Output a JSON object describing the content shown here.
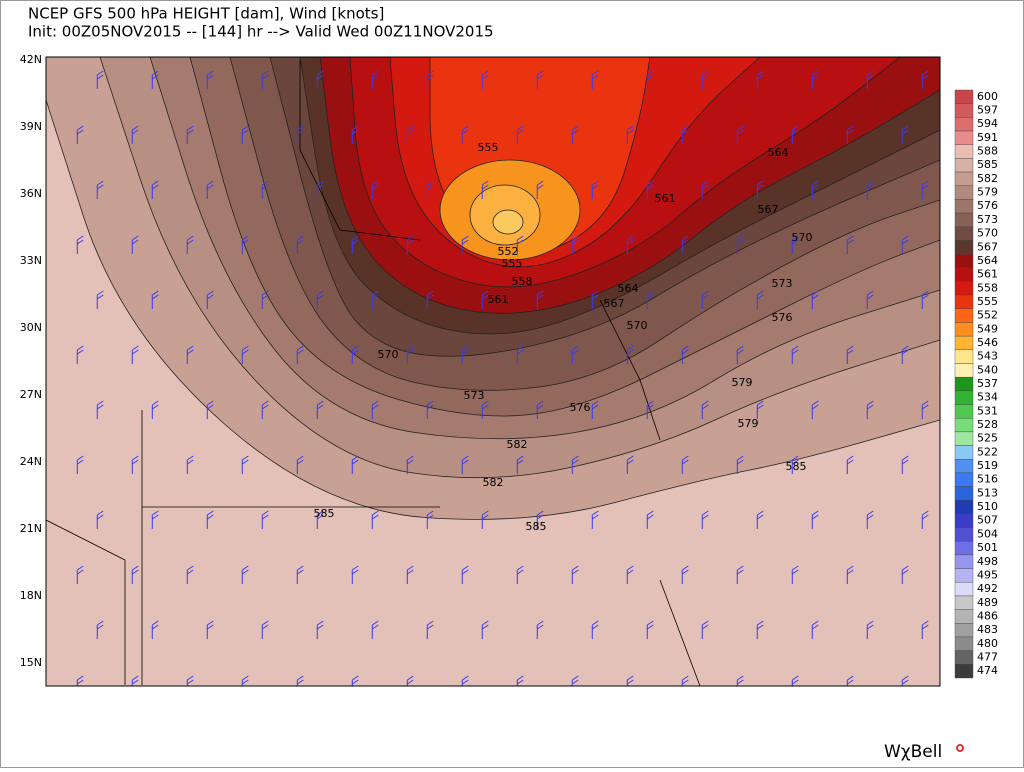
{
  "header": {
    "title": "NCEP GFS 500 hPa HEIGHT [dam], Wind [knots]",
    "subtitle": "Init: 00Z05NOV2015 -- [144] hr --> Valid Wed 00Z11NOV2015"
  },
  "map": {
    "lat_labels": [
      "42N",
      "39N",
      "36N",
      "33N",
      "30N",
      "27N",
      "24N",
      "21N",
      "18N",
      "15N"
    ],
    "contour_labels": [
      {
        "text": "555"
      },
      {
        "text": "552"
      },
      {
        "text": "555"
      },
      {
        "text": "558"
      },
      {
        "text": "561"
      },
      {
        "text": "564"
      },
      {
        "text": "567"
      },
      {
        "text": "570"
      },
      {
        "text": "564"
      },
      {
        "text": "561"
      },
      {
        "text": "567"
      },
      {
        "text": "570"
      },
      {
        "text": "573"
      },
      {
        "text": "576"
      },
      {
        "text": "570"
      },
      {
        "text": "573"
      },
      {
        "text": "576"
      },
      {
        "text": "579"
      },
      {
        "text": "582"
      },
      {
        "text": "579"
      },
      {
        "text": "582"
      },
      {
        "text": "585"
      },
      {
        "text": "585"
      },
      {
        "text": "585"
      }
    ]
  },
  "colorbar": {
    "levels": [
      {
        "label": "600",
        "color": "#c8464b"
      },
      {
        "label": "597",
        "color": "#d25a5a"
      },
      {
        "label": "594",
        "color": "#dc6e6e"
      },
      {
        "label": "591",
        "color": "#e68c8c"
      },
      {
        "label": "588",
        "color": "#ebbcb2"
      },
      {
        "label": "585",
        "color": "#d6b0a6"
      },
      {
        "label": "582",
        "color": "#c49c90"
      },
      {
        "label": "579",
        "color": "#b08a7e"
      },
      {
        "label": "576",
        "color": "#9c766a"
      },
      {
        "label": "573",
        "color": "#866256"
      },
      {
        "label": "570",
        "color": "#704c42"
      },
      {
        "label": "567",
        "color": "#5a382e"
      },
      {
        "label": "564",
        "color": "#9a1010"
      },
      {
        "label": "561",
        "color": "#b81010"
      },
      {
        "label": "558",
        "color": "#d41a10"
      },
      {
        "label": "555",
        "color": "#ea3410"
      },
      {
        "label": "552",
        "color": "#ff6414"
      },
      {
        "label": "549",
        "color": "#ff8c1e"
      },
      {
        "label": "546",
        "color": "#ffb432"
      },
      {
        "label": "543",
        "color": "#ffe68c"
      },
      {
        "label": "540",
        "color": "#fff0b4"
      },
      {
        "label": "537",
        "color": "#1e961e"
      },
      {
        "label": "534",
        "color": "#32b432"
      },
      {
        "label": "531",
        "color": "#50c850"
      },
      {
        "label": "528",
        "color": "#78dc78"
      },
      {
        "label": "525",
        "color": "#a0e6a0"
      },
      {
        "label": "522",
        "color": "#8cc8f5"
      },
      {
        "label": "519",
        "color": "#5090f0"
      },
      {
        "label": "516",
        "color": "#3c78f0"
      },
      {
        "label": "513",
        "color": "#2864dc"
      },
      {
        "label": "510",
        "color": "#1e3cb4"
      },
      {
        "label": "507",
        "color": "#3c3cc8"
      },
      {
        "label": "504",
        "color": "#5050d2"
      },
      {
        "label": "501",
        "color": "#6e6ee6"
      },
      {
        "label": "498",
        "color": "#9696f0"
      },
      {
        "label": "495",
        "color": "#b4b4f5"
      },
      {
        "label": "492",
        "color": "#dcdcfa"
      },
      {
        "label": "489",
        "color": "#c8c8c8"
      },
      {
        "label": "486",
        "color": "#b4b4b4"
      },
      {
        "label": "483",
        "color": "#a0a0a0"
      },
      {
        "label": "480",
        "color": "#8c8c8c"
      },
      {
        "label": "477",
        "color": "#646464"
      },
      {
        "label": "474",
        "color": "#3c3c3c"
      }
    ]
  },
  "logo": "WχBell"
}
